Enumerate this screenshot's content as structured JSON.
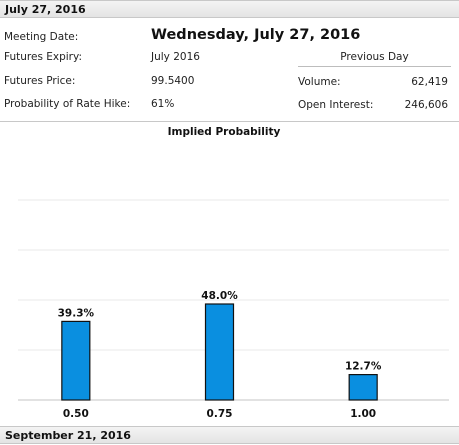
{
  "header": {
    "top_title": "July 27, 2016",
    "bottom_title": "September 21, 2016"
  },
  "meeting": {
    "date_label": "Meeting Date:",
    "date_value": "Wednesday, July 27, 2016",
    "expiry_label": "Futures Expiry:",
    "expiry_value": "July 2016",
    "price_label": "Futures Price:",
    "price_value": "99.5400",
    "hike_label": "Probability of Rate Hike:",
    "hike_value": "61%"
  },
  "previous_day": {
    "title": "Previous Day",
    "volume_label": "Volume:",
    "volume_value": "62,419",
    "oi_label": "Open Interest:",
    "oi_value": "246,606"
  },
  "chart_data": {
    "type": "bar",
    "title": "Implied Probability",
    "categories": [
      "0.50",
      "0.75",
      "1.00"
    ],
    "values": [
      39.3,
      48.0,
      12.7
    ],
    "data_labels": [
      "39.3%",
      "48.0%",
      "12.7%"
    ],
    "ylim": [
      0,
      100
    ],
    "grid": true,
    "bar_color": "#0a8fe0"
  }
}
